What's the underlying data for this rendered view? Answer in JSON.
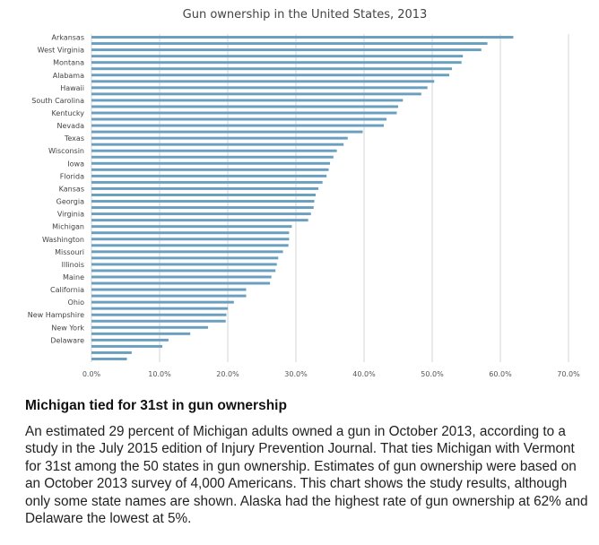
{
  "chart_data": {
    "type": "bar",
    "orientation": "horizontal",
    "title": "Gun ownership in the United States, 2013",
    "xlabel": "",
    "ylabel": "",
    "xlim": [
      0,
      0.7
    ],
    "x_ticks": [
      "0.0%",
      "10.0%",
      "20.0%",
      "30.0%",
      "40.0%",
      "50.0%",
      "60.0%",
      "70.0%"
    ],
    "grid": true,
    "bar_color": "#6a9fc0",
    "category_labels": [
      "Arkansas",
      "West Virginia",
      "Montana",
      "Alabama",
      "Hawaii",
      "South Carolina",
      "Kentucky",
      "Nevada",
      "Texas",
      "Wisconsin",
      "Iowa",
      "Florida",
      "Kansas",
      "Georgia",
      "Virginia",
      "Michigan",
      "Washington",
      "Missouri",
      "Illinois",
      "Maine",
      "California",
      "Ohio",
      "New Hampshire",
      "New York",
      "Delaware"
    ],
    "values": [
      0.619,
      0.581,
      0.572,
      0.545,
      0.543,
      0.529,
      0.525,
      0.503,
      0.493,
      0.484,
      0.457,
      0.45,
      0.448,
      0.433,
      0.429,
      0.398,
      0.376,
      0.37,
      0.36,
      0.355,
      0.35,
      0.348,
      0.345,
      0.339,
      0.333,
      0.329,
      0.327,
      0.326,
      0.322,
      0.318,
      0.294,
      0.29,
      0.29,
      0.289,
      0.281,
      0.274,
      0.272,
      0.27,
      0.264,
      0.262,
      0.227,
      0.227,
      0.209,
      0.2,
      0.198,
      0.197,
      0.171,
      0.145,
      0.113,
      0.104,
      0.059,
      0.052
    ]
  },
  "article": {
    "headline": "Michigan tied for 31st in gun ownership",
    "body": "An estimated 29 percent of Michigan adults owned a gun in October 2013, according to a study in the July 2015 edition of Injury Prevention Journal. That ties Michigan with Vermont for 31st among the 50 states in gun ownership. Estimates of gun ownership were based on an October 2013 survey of 4,000 Americans. This chart shows the study results, although only some state names are shown. Alaska had the highest rate of gun ownership at 62% and Delaware the lowest at 5%."
  }
}
